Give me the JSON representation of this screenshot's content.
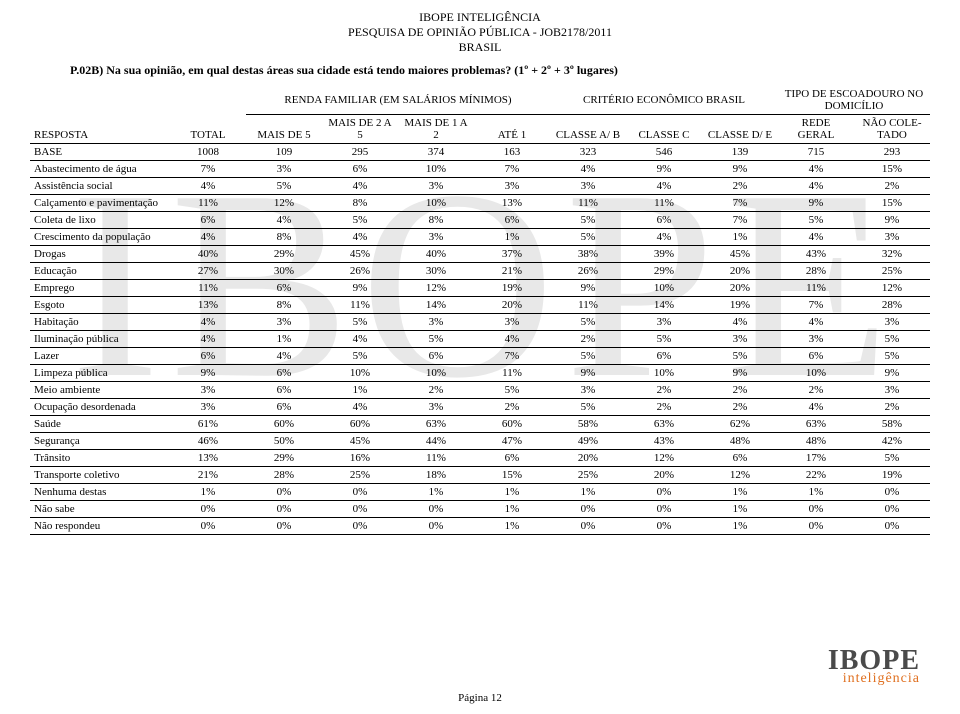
{
  "header": {
    "line1": "IBOPE INTELIGÊNCIA",
    "line2": "PESQUISA DE OPINIÃO PÚBLICA - JOB2178/2011",
    "line3": "BRASIL"
  },
  "question": "P.02B) Na sua opinião, em qual destas áreas sua cidade está tendo maiores problemas? (1º + 2º + 3º lugares)",
  "watermark": "IBOPE",
  "group_headers": {
    "blank1": "",
    "blank2": "",
    "renda": "RENDA FAMILIAR (EM SALÁRIOS MÍNIMOS)",
    "criterio": "CRITÉRIO ECONÔMICO BRASIL",
    "escoadouro": "TIPO DE ESCOADOURO NO DOMICÍLIO"
  },
  "columns": [
    "RESPOSTA",
    "TOTAL",
    "MAIS DE 5",
    "MAIS DE 2 A 5",
    "MAIS DE 1 A 2",
    "ATÉ 1",
    "CLASSE A/ B",
    "CLASSE C",
    "CLASSE D/ E",
    "REDE GERAL",
    "NÃO COLE- TADO"
  ],
  "rows": [
    {
      "label": "BASE",
      "v": [
        "1008",
        "109",
        "295",
        "374",
        "163",
        "323",
        "546",
        "139",
        "715",
        "293"
      ]
    },
    {
      "label": "Abastecimento de água",
      "v": [
        "7%",
        "3%",
        "6%",
        "10%",
        "7%",
        "4%",
        "9%",
        "9%",
        "4%",
        "15%"
      ]
    },
    {
      "label": "Assistência social",
      "v": [
        "4%",
        "5%",
        "4%",
        "3%",
        "3%",
        "3%",
        "4%",
        "2%",
        "4%",
        "2%"
      ]
    },
    {
      "label": "Calçamento e pavimentação",
      "v": [
        "11%",
        "12%",
        "8%",
        "10%",
        "13%",
        "11%",
        "11%",
        "7%",
        "9%",
        "15%"
      ]
    },
    {
      "label": "Coleta de lixo",
      "v": [
        "6%",
        "4%",
        "5%",
        "8%",
        "6%",
        "5%",
        "6%",
        "7%",
        "5%",
        "9%"
      ]
    },
    {
      "label": "Crescimento da população",
      "v": [
        "4%",
        "8%",
        "4%",
        "3%",
        "1%",
        "5%",
        "4%",
        "1%",
        "4%",
        "3%"
      ]
    },
    {
      "label": "Drogas",
      "v": [
        "40%",
        "29%",
        "45%",
        "40%",
        "37%",
        "38%",
        "39%",
        "45%",
        "43%",
        "32%"
      ]
    },
    {
      "label": "Educação",
      "v": [
        "27%",
        "30%",
        "26%",
        "30%",
        "21%",
        "26%",
        "29%",
        "20%",
        "28%",
        "25%"
      ]
    },
    {
      "label": "Emprego",
      "v": [
        "11%",
        "6%",
        "9%",
        "12%",
        "19%",
        "9%",
        "10%",
        "20%",
        "11%",
        "12%"
      ]
    },
    {
      "label": "Esgoto",
      "v": [
        "13%",
        "8%",
        "11%",
        "14%",
        "20%",
        "11%",
        "14%",
        "19%",
        "7%",
        "28%"
      ]
    },
    {
      "label": "Habitação",
      "v": [
        "4%",
        "3%",
        "5%",
        "3%",
        "3%",
        "5%",
        "3%",
        "4%",
        "4%",
        "3%"
      ]
    },
    {
      "label": "Iluminação pública",
      "v": [
        "4%",
        "1%",
        "4%",
        "5%",
        "4%",
        "2%",
        "5%",
        "3%",
        "3%",
        "5%"
      ]
    },
    {
      "label": "Lazer",
      "v": [
        "6%",
        "4%",
        "5%",
        "6%",
        "7%",
        "5%",
        "6%",
        "5%",
        "6%",
        "5%"
      ]
    },
    {
      "label": "Limpeza pública",
      "v": [
        "9%",
        "6%",
        "10%",
        "10%",
        "11%",
        "9%",
        "10%",
        "9%",
        "10%",
        "9%"
      ]
    },
    {
      "label": "Meio ambiente",
      "v": [
        "3%",
        "6%",
        "1%",
        "2%",
        "5%",
        "3%",
        "2%",
        "2%",
        "2%",
        "3%"
      ]
    },
    {
      "label": "Ocupação desordenada",
      "v": [
        "3%",
        "6%",
        "4%",
        "3%",
        "2%",
        "5%",
        "2%",
        "2%",
        "4%",
        "2%"
      ]
    },
    {
      "label": "Saúde",
      "v": [
        "61%",
        "60%",
        "60%",
        "63%",
        "60%",
        "58%",
        "63%",
        "62%",
        "63%",
        "58%"
      ]
    },
    {
      "label": "Segurança",
      "v": [
        "46%",
        "50%",
        "45%",
        "44%",
        "47%",
        "49%",
        "43%",
        "48%",
        "48%",
        "42%"
      ]
    },
    {
      "label": "Trânsito",
      "v": [
        "13%",
        "29%",
        "16%",
        "11%",
        "6%",
        "20%",
        "12%",
        "6%",
        "17%",
        "5%"
      ]
    },
    {
      "label": "Transporte coletivo",
      "v": [
        "21%",
        "28%",
        "25%",
        "18%",
        "15%",
        "25%",
        "20%",
        "12%",
        "22%",
        "19%"
      ]
    },
    {
      "label": "Nenhuma destas",
      "v": [
        "1%",
        "0%",
        "0%",
        "1%",
        "1%",
        "1%",
        "0%",
        "1%",
        "1%",
        "0%"
      ]
    },
    {
      "label": "Não sabe",
      "v": [
        "0%",
        "0%",
        "0%",
        "0%",
        "1%",
        "0%",
        "0%",
        "1%",
        "0%",
        "0%"
      ]
    },
    {
      "label": "Não respondeu",
      "v": [
        "0%",
        "0%",
        "0%",
        "0%",
        "1%",
        "0%",
        "0%",
        "1%",
        "0%",
        "0%"
      ]
    }
  ],
  "logo": {
    "main": "IBOPE",
    "sub": "inteligência"
  },
  "page_number": "Página 12",
  "style": {
    "page_bg": "#ffffff",
    "text_color": "#000000",
    "watermark_color": "#e8e8e8",
    "border_color": "#000000",
    "logo_main_color": "#4a4a4a",
    "logo_sub_color": "#e07020",
    "body_fontsize": 11,
    "header_fontsize": 12
  }
}
